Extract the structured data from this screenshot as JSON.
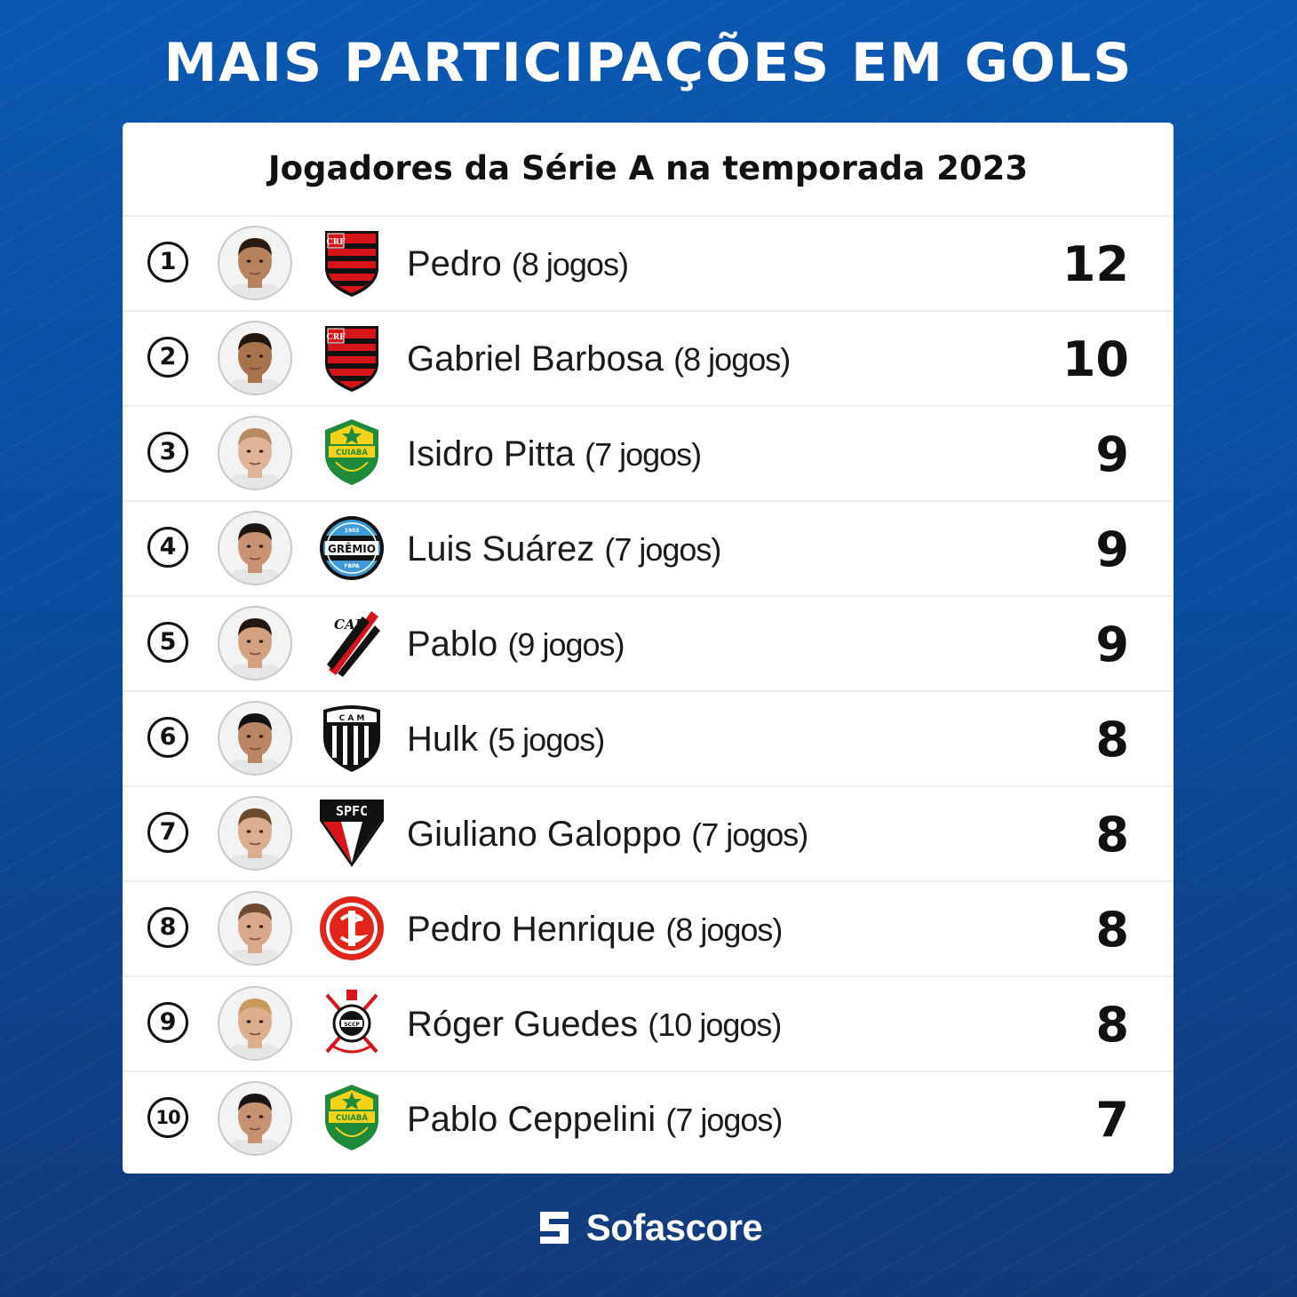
{
  "header": {
    "title": "MAIS PARTICIPAÇÕES EM GOLS"
  },
  "card": {
    "subtitle": "Jogadores da Série A na temporada 2023"
  },
  "players": [
    {
      "rank": "1",
      "name": "Pedro",
      "games": "(8 jogos)",
      "value": "12",
      "club_icon": "flamengo-crest",
      "skin": "#b7835d",
      "hair": "#2a1b12"
    },
    {
      "rank": "2",
      "name": "Gabriel Barbosa",
      "games": "(8 jogos)",
      "value": "10",
      "club_icon": "flamengo-crest",
      "skin": "#a8724d",
      "hair": "#24160e"
    },
    {
      "rank": "3",
      "name": "Isidro Pitta",
      "games": "(7 jogos)",
      "value": "9",
      "club_icon": "cuiaba-crest",
      "skin": "#e0b49a",
      "hair": "#b88a64"
    },
    {
      "rank": "4",
      "name": "Luis Suárez",
      "games": "(7 jogos)",
      "value": "9",
      "club_icon": "gremio-crest",
      "skin": "#c99273",
      "hair": "#1e1510"
    },
    {
      "rank": "5",
      "name": "Pablo",
      "games": "(9 jogos)",
      "value": "9",
      "club_icon": "athletico-crest",
      "skin": "#d3a080",
      "hair": "#221710"
    },
    {
      "rank": "6",
      "name": "Hulk",
      "games": "(5 jogos)",
      "value": "8",
      "club_icon": "atletico-mineiro-crest",
      "skin": "#b98563",
      "hair": "#121010"
    },
    {
      "rank": "7",
      "name": "Giuliano Galoppo",
      "games": "(7 jogos)",
      "value": "8",
      "club_icon": "sao-paulo-crest",
      "skin": "#dcae90",
      "hair": "#6b4a32"
    },
    {
      "rank": "8",
      "name": "Pedro Henrique",
      "games": "(8 jogos)",
      "value": "8",
      "club_icon": "internacional-crest",
      "skin": "#d9a88b",
      "hair": "#6e4a30"
    },
    {
      "rank": "9",
      "name": "Róger Guedes",
      "games": "(10 jogos)",
      "value": "8",
      "club_icon": "corinthians-crest",
      "skin": "#dcae8e",
      "hair": "#c99a5c"
    },
    {
      "rank": "10",
      "name": "Pablo Ceppelini",
      "games": "(7 jogos)",
      "value": "7",
      "club_icon": "cuiaba-crest",
      "skin": "#c59272",
      "hair": "#1b1310"
    }
  ],
  "crest_text": {
    "flamengo": "CRF",
    "cuiaba": "CUIABÁ",
    "gremio": "GRÊMIO",
    "gremio_year": "1903",
    "gremio_fbpa": "FBPA",
    "athletico": "CAP",
    "atletico_mineiro": "C A M",
    "sao_paulo": "SPFC",
    "corinthians": "SCCP"
  },
  "footer": {
    "brand": "Sofascore"
  },
  "colors": {
    "background": "#0b57b0",
    "flamengo_red": "#d7141a",
    "cuiaba_green": "#1e8a3a",
    "cuiaba_yellow": "#f6d21b",
    "gremio_blue": "#3e9ad8",
    "inter_red": "#e1251b",
    "spfc_red": "#d7141a"
  }
}
